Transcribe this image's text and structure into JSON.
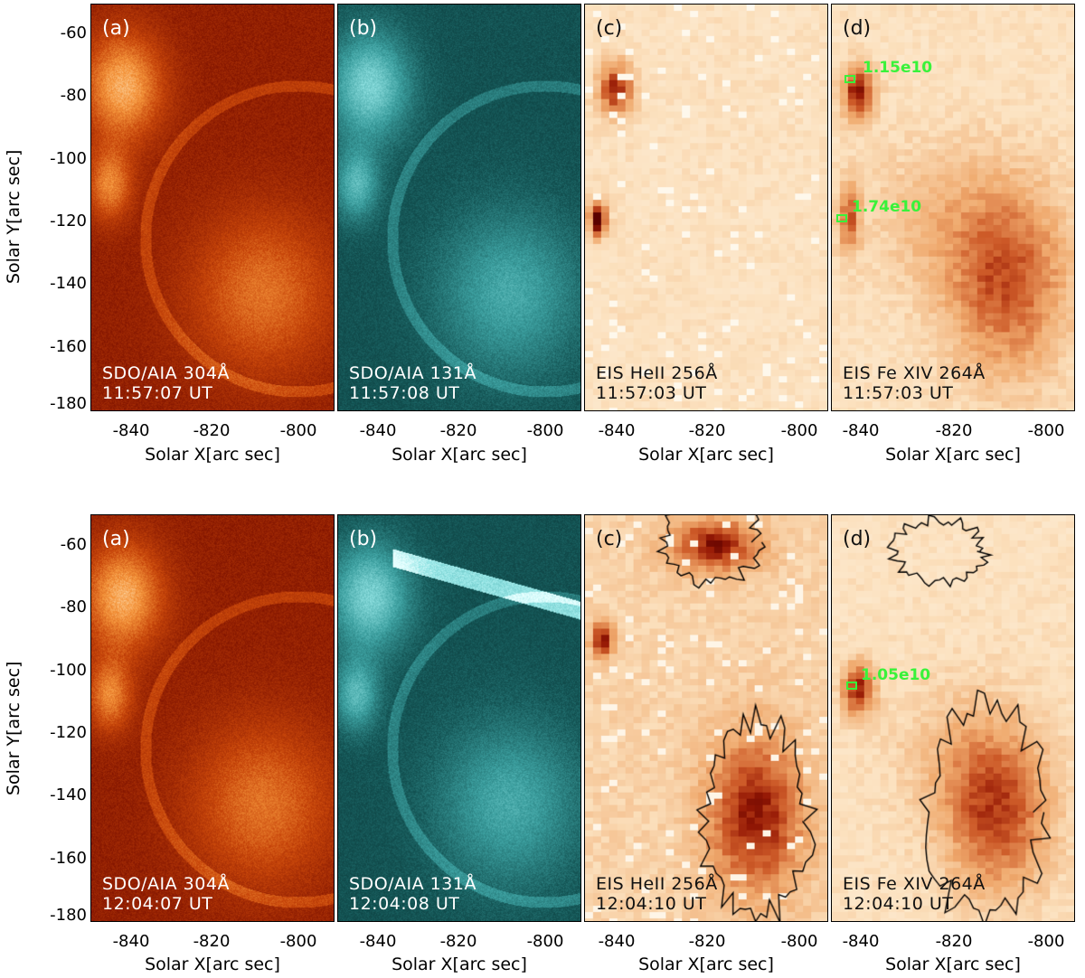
{
  "axes": {
    "ylabel": "Solar Y[arc sec]",
    "xlabel": "Solar X[arc sec]",
    "yticks": [
      "-60",
      "-80",
      "-100",
      "-120",
      "-140",
      "-160",
      "-180"
    ],
    "xticks": [
      "-840",
      "-820",
      "-800"
    ]
  },
  "rows": [
    {
      "panels": [
        {
          "label": "(a)",
          "inst": "SDO/AIA 304Å",
          "time": "11:57:07 UT",
          "colormap": "aia304"
        },
        {
          "label": "(b)",
          "inst": "SDO/AIA 131Å",
          "time": "11:57:08 UT",
          "colormap": "aia131"
        },
        {
          "label": "(c)",
          "inst": "EIS HeII 256Å",
          "time": "11:57:03 UT",
          "colormap": "eis"
        },
        {
          "label": "(d)",
          "inst": "EIS Fe XIV 264Å",
          "time": "11:57:03 UT",
          "colormap": "eis",
          "annotations": [
            "1.15e10",
            "1.74e10"
          ]
        }
      ]
    },
    {
      "panels": [
        {
          "label": "(a)",
          "inst": "SDO/AIA 304Å",
          "time": "12:04:07 UT",
          "colormap": "aia304"
        },
        {
          "label": "(b)",
          "inst": "SDO/AIA 131Å",
          "time": "12:04:08 UT",
          "colormap": "aia131"
        },
        {
          "label": "(c)",
          "inst": "EIS HeII 256Å",
          "time": "12:04:10 UT",
          "colormap": "eis"
        },
        {
          "label": "(d)",
          "inst": "EIS Fe XIV 264Å",
          "time": "12:04:10 UT",
          "colormap": "eis",
          "annotations": [
            "1.05e10"
          ]
        }
      ]
    }
  ],
  "colors": {
    "annotation": "#39f23a",
    "aia304_dark": "#5a0a00",
    "aia304_bright": "#ffd8a0",
    "aia131_dark": "#062a2a",
    "aia131_bright": "#c8ffff",
    "eis_light": "#fde9d2",
    "eis_dark": "#7a1000"
  }
}
